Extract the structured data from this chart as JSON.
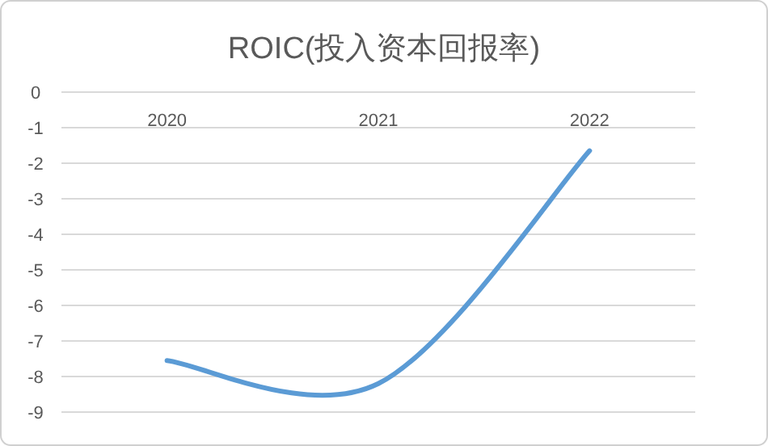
{
  "chart_data": {
    "type": "line",
    "title": "ROIC(投入资本回报率)",
    "categories": [
      "2020",
      "2021",
      "2022"
    ],
    "values": [
      -7.55,
      -8.2,
      -1.65
    ],
    "color": "#5b9bd5",
    "ylim": [
      -9,
      0
    ],
    "yticks": [
      0,
      -1,
      -2,
      -3,
      -4,
      -5,
      -6,
      -7,
      -8,
      -9
    ],
    "grid": "y",
    "marker": "none",
    "line_style": "solid"
  }
}
